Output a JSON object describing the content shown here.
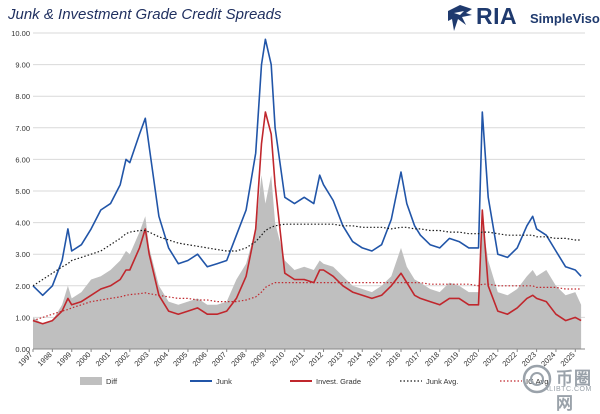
{
  "header": {
    "title": "Junk & Investment Grade Credit Spreads"
  },
  "logo": {
    "brand": "RIA",
    "product": "SimpleVisor",
    "icon": "eagle-logo-icon",
    "color": "#1f3a6e"
  },
  "watermark": {
    "main": "币圈网",
    "sub": "ALIBTC.COM"
  },
  "chart_data": {
    "type": "line",
    "title": "Junk & Investment Grade Credit Spreads",
    "xlabel": "",
    "ylabel": "",
    "xlim": [
      1997,
      2025.5
    ],
    "ylim": [
      0,
      10
    ],
    "grid": "horizontal",
    "legend_position": "bottom",
    "x_ticks": [
      "1997",
      "1998",
      "1999",
      "2000",
      "2001",
      "2002",
      "2003",
      "2004",
      "2005",
      "2006",
      "2007",
      "2008",
      "2009",
      "2010",
      "2011",
      "2012",
      "2013",
      "2014",
      "2015",
      "2016",
      "2017",
      "2018",
      "2019",
      "2020",
      "2021",
      "2022",
      "2023",
      "2024",
      "2025"
    ],
    "y_ticks": [
      "0.00",
      "1.00",
      "2.00",
      "3.00",
      "4.00",
      "5.00",
      "6.00",
      "7.00",
      "8.00",
      "9.00",
      "10.00"
    ],
    "x": [
      1997,
      1997.5,
      1998,
      1998.5,
      1998.8,
      1999,
      1999.5,
      2000,
      2000.5,
      2001,
      2001.5,
      2001.8,
      2002,
      2002.5,
      2002.8,
      2003,
      2003.5,
      2004,
      2004.5,
      2005,
      2005.5,
      2006,
      2006.5,
      2007,
      2007.5,
      2008,
      2008.5,
      2008.8,
      2009,
      2009.3,
      2009.5,
      2010,
      2010.5,
      2011,
      2011.5,
      2011.8,
      2012,
      2012.5,
      2013,
      2013.5,
      2014,
      2014.5,
      2015,
      2015.5,
      2016,
      2016.3,
      2016.7,
      2017,
      2017.5,
      2018,
      2018.5,
      2019,
      2019.5,
      2020,
      2020.2,
      2020.5,
      2021,
      2021.5,
      2022,
      2022.5,
      2022.8,
      2023,
      2023.5,
      2024,
      2024.5,
      2025,
      2025.3
    ],
    "series": [
      {
        "name": "Diff",
        "kind": "area",
        "color": "#bfbfbf",
        "values": [
          1.0,
          0.8,
          0.9,
          1.4,
          2.0,
          1.6,
          1.8,
          2.2,
          2.3,
          2.5,
          2.8,
          3.1,
          3.0,
          3.7,
          4.2,
          3.2,
          2.0,
          1.5,
          1.4,
          1.5,
          1.6,
          1.4,
          1.4,
          1.5,
          2.2,
          2.7,
          3.8,
          5.5,
          4.6,
          5.5,
          4.0,
          2.8,
          2.5,
          2.6,
          2.5,
          2.8,
          2.7,
          2.6,
          2.3,
          2.0,
          1.9,
          1.8,
          2.0,
          2.3,
          3.2,
          2.6,
          2.2,
          2.1,
          1.9,
          1.8,
          2.1,
          2.0,
          1.8,
          1.8,
          4.0,
          2.8,
          1.8,
          1.7,
          1.9,
          2.3,
          2.5,
          2.3,
          2.5,
          2.0,
          1.7,
          1.8,
          1.4
        ]
      },
      {
        "name": "Junk",
        "kind": "line",
        "color": "#2155a8",
        "values": [
          2.0,
          1.7,
          2.0,
          2.8,
          3.8,
          3.1,
          3.3,
          3.8,
          4.4,
          4.6,
          5.2,
          6.0,
          5.9,
          6.8,
          7.3,
          6.4,
          4.2,
          3.2,
          2.7,
          2.8,
          3.0,
          2.6,
          2.7,
          2.8,
          3.6,
          4.4,
          6.2,
          9.0,
          9.8,
          9.0,
          7.0,
          4.8,
          4.6,
          4.8,
          4.6,
          5.5,
          5.2,
          4.7,
          3.9,
          3.4,
          3.2,
          3.1,
          3.3,
          4.1,
          5.6,
          4.6,
          3.9,
          3.6,
          3.3,
          3.2,
          3.5,
          3.4,
          3.2,
          3.2,
          7.5,
          4.8,
          3.0,
          2.9,
          3.2,
          3.9,
          4.2,
          3.8,
          3.6,
          3.1,
          2.6,
          2.5,
          2.3
        ]
      },
      {
        "name": "Invest. Grade",
        "kind": "line",
        "color": "#c0272d",
        "values": [
          0.9,
          0.8,
          0.9,
          1.2,
          1.6,
          1.4,
          1.5,
          1.7,
          1.9,
          2.0,
          2.2,
          2.5,
          2.5,
          3.2,
          3.8,
          3.0,
          1.7,
          1.2,
          1.1,
          1.2,
          1.3,
          1.1,
          1.1,
          1.2,
          1.6,
          2.3,
          3.8,
          6.5,
          7.5,
          6.8,
          5.2,
          2.4,
          2.2,
          2.2,
          2.1,
          2.5,
          2.5,
          2.3,
          2.0,
          1.8,
          1.7,
          1.6,
          1.7,
          2.0,
          2.4,
          2.1,
          1.7,
          1.6,
          1.5,
          1.4,
          1.6,
          1.6,
          1.4,
          1.4,
          4.4,
          2.0,
          1.2,
          1.1,
          1.3,
          1.6,
          1.7,
          1.6,
          1.5,
          1.1,
          0.9,
          1.0,
          0.9
        ]
      },
      {
        "name": "Junk Avg.",
        "kind": "dotted",
        "color": "#1a1a1a",
        "values": [
          2.0,
          2.2,
          2.4,
          2.6,
          2.7,
          2.8,
          2.9,
          3.0,
          3.1,
          3.3,
          3.5,
          3.65,
          3.7,
          3.75,
          3.75,
          3.7,
          3.55,
          3.45,
          3.35,
          3.3,
          3.25,
          3.2,
          3.15,
          3.1,
          3.1,
          3.2,
          3.4,
          3.6,
          3.75,
          3.85,
          3.9,
          3.95,
          3.95,
          3.95,
          3.95,
          3.95,
          3.95,
          3.95,
          3.9,
          3.9,
          3.85,
          3.85,
          3.85,
          3.8,
          3.85,
          3.85,
          3.8,
          3.8,
          3.75,
          3.75,
          3.7,
          3.7,
          3.65,
          3.65,
          3.7,
          3.7,
          3.65,
          3.6,
          3.6,
          3.6,
          3.6,
          3.55,
          3.55,
          3.5,
          3.5,
          3.45,
          3.45
        ]
      },
      {
        "name": "IG Avg.",
        "kind": "dotted",
        "color": "#c0272d",
        "values": [
          0.9,
          1.0,
          1.1,
          1.2,
          1.25,
          1.3,
          1.4,
          1.5,
          1.55,
          1.6,
          1.65,
          1.7,
          1.72,
          1.75,
          1.78,
          1.75,
          1.7,
          1.65,
          1.6,
          1.6,
          1.55,
          1.55,
          1.5,
          1.5,
          1.5,
          1.55,
          1.65,
          1.8,
          1.95,
          2.05,
          2.1,
          2.1,
          2.1,
          2.1,
          2.1,
          2.1,
          2.1,
          2.1,
          2.1,
          2.1,
          2.1,
          2.1,
          2.1,
          2.1,
          2.1,
          2.1,
          2.1,
          2.1,
          2.05,
          2.05,
          2.05,
          2.05,
          2.05,
          2.0,
          2.05,
          2.05,
          2.0,
          2.0,
          2.0,
          2.0,
          2.0,
          1.95,
          1.95,
          1.95,
          1.9,
          1.9,
          1.9
        ]
      }
    ]
  }
}
